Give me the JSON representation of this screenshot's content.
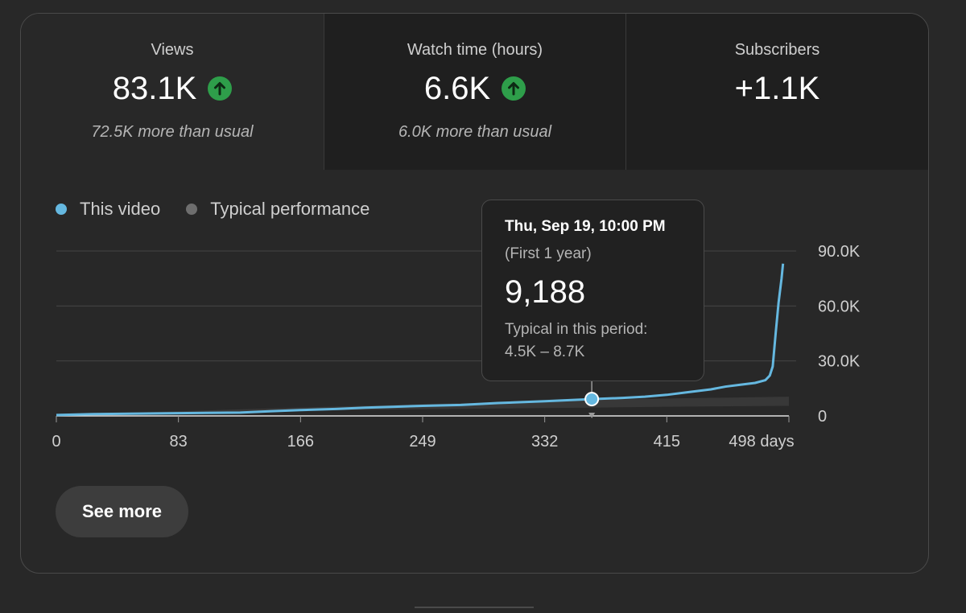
{
  "metrics": [
    {
      "label": "Views",
      "value": "83.1K",
      "trend": "up",
      "note": "72.5K more than usual"
    },
    {
      "label": "Watch time (hours)",
      "value": "6.6K",
      "trend": "up",
      "note": "6.0K more than usual"
    },
    {
      "label": "Subscribers",
      "value": "+1.1K",
      "trend": "none",
      "note": ""
    }
  ],
  "legend": [
    {
      "label": "This video",
      "color": "#65b8e0"
    },
    {
      "label": "Typical performance",
      "color": "#6e6e6e"
    }
  ],
  "tooltip": {
    "date": "Thu, Sep 19, 10:00 PM",
    "period": "(First 1 year)",
    "value": "9,188",
    "typical_label": "Typical in this period:",
    "typical_range": "4.5K – 8.7K"
  },
  "see_more_label": "See more",
  "colors": {
    "accent": "#65b8e0",
    "up_icon": "#2e9e4a",
    "band": "#3a3a3a"
  },
  "chart_data": {
    "type": "line",
    "x_ticks": [
      "0",
      "83",
      "166",
      "249",
      "332",
      "415",
      "498 days"
    ],
    "y_ticks": [
      "0",
      "30.0K",
      "60.0K",
      "90.0K"
    ],
    "ylim": [
      0,
      90000
    ],
    "xlim": [
      0,
      498
    ],
    "grid": true,
    "legend_position": "top-left",
    "series": [
      {
        "name": "This video",
        "color": "#65b8e0",
        "x": [
          0,
          25,
          50,
          83,
          125,
          145,
          166,
          190,
          210,
          230,
          249,
          275,
          300,
          332,
          364,
          385,
          400,
          415,
          430,
          445,
          455,
          465,
          475,
          482,
          485,
          487,
          489,
          491,
          493,
          494
        ],
        "y": [
          500,
          1000,
          1200,
          1500,
          1800,
          2500,
          3200,
          3800,
          4500,
          5000,
          5500,
          6000,
          7000,
          8000,
          9188,
          9800,
          10500,
          11500,
          13000,
          14500,
          16000,
          17000,
          18000,
          19500,
          22000,
          27000,
          45000,
          62000,
          75000,
          83100
        ]
      },
      {
        "name": "Typical performance",
        "color": "#3a3a3a",
        "x": [
          0,
          83,
          166,
          249,
          332,
          364,
          415,
          498
        ],
        "low": [
          200,
          1500,
          2800,
          3700,
          4300,
          4500,
          5000,
          5500
        ],
        "high": [
          800,
          2500,
          4600,
          6400,
          8000,
          8700,
          9500,
          10500
        ]
      }
    ],
    "highlight": {
      "x": 364,
      "y": 9188
    }
  }
}
